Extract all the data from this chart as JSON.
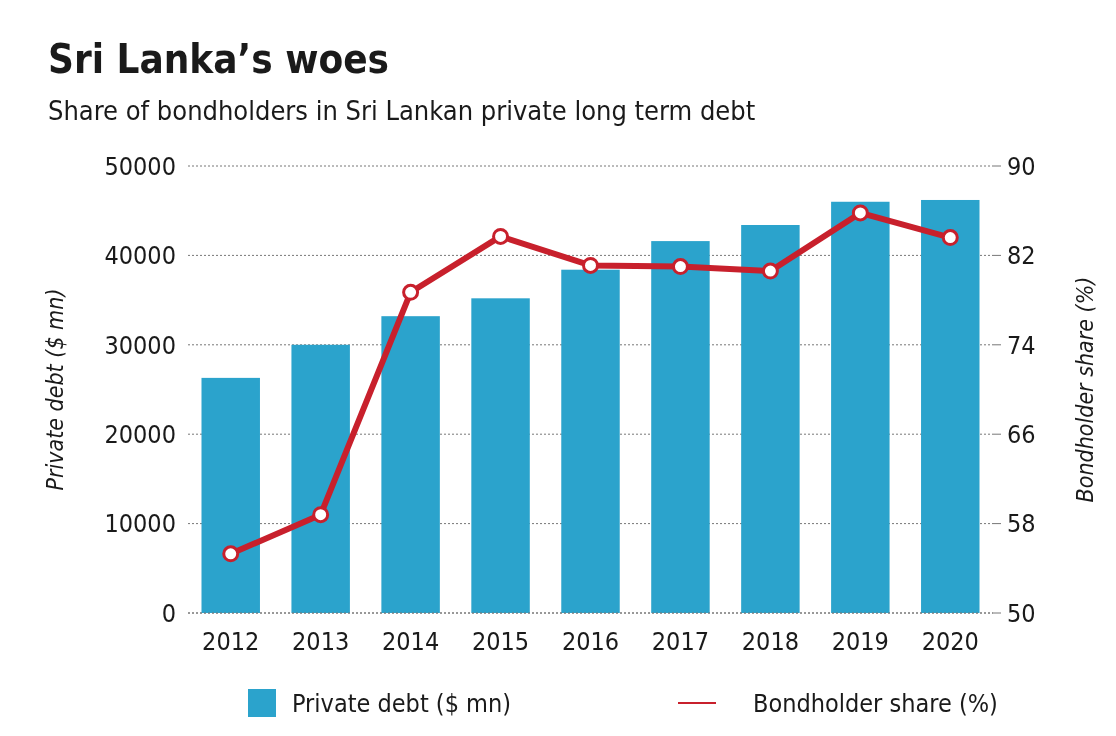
{
  "chart_data": {
    "type": "bar",
    "title": "Sri Lanka’s woes",
    "subtitle": "Share of bondholders in Sri Lankan private long term debt",
    "ylabel": "Private debt ($ mn)",
    "y2label": "Bondholder share (%)",
    "categories": [
      "2012",
      "2013",
      "2014",
      "2015",
      "2016",
      "2017",
      "2018",
      "2019",
      "2020"
    ],
    "series": [
      {
        "name": "Private debt ($ mn)",
        "color": "#2ba3cc",
        "values": [
          26300,
          30000,
          33200,
          35200,
          38400,
          41600,
          43400,
          46000,
          46200
        ]
      },
      {
        "name": "Bondholder share (%)",
        "type": "line",
        "axis": "y2",
        "color": "#c8202c",
        "marker": "circle",
        "values": [
          55.3,
          58.8,
          78.7,
          83.7,
          81.1,
          81.0,
          80.6,
          85.8,
          83.6
        ]
      }
    ],
    "ylim": [
      0,
      50000
    ],
    "yticks": [
      0,
      10000,
      20000,
      30000,
      40000,
      50000
    ],
    "y2lim": [
      50,
      90
    ],
    "y2ticks": [
      50,
      58,
      66,
      74,
      82,
      90
    ],
    "grid": "y",
    "legend": "bottom"
  }
}
